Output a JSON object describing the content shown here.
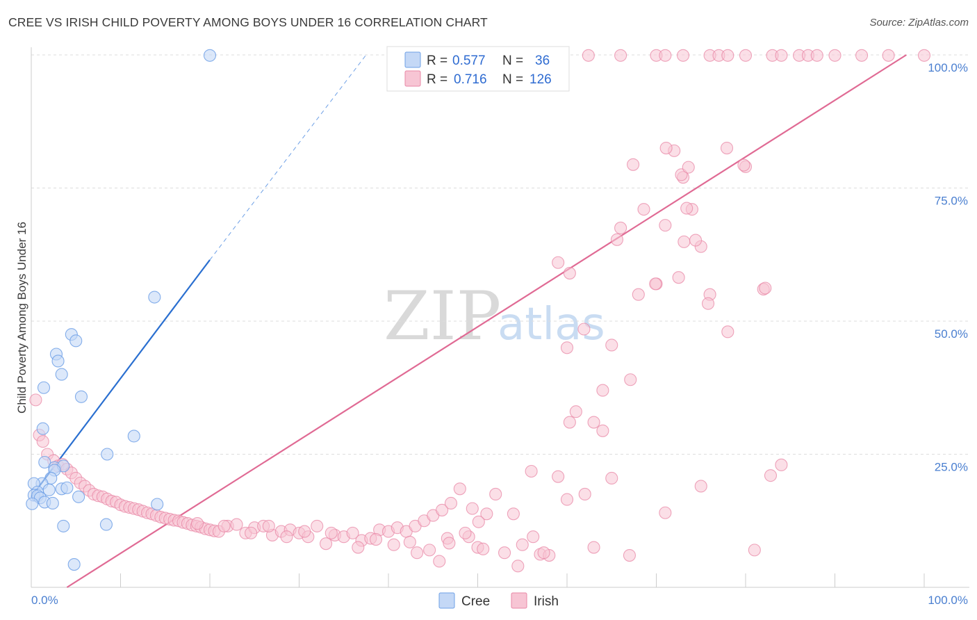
{
  "title": "CREE VS IRISH CHILD POVERTY AMONG BOYS UNDER 16 CORRELATION CHART",
  "source": "Source: ZipAtlas.com",
  "watermark": {
    "zip": "ZIP",
    "atlas": "atlas"
  },
  "colors": {
    "cree": "#6ea0e6",
    "cree_fill": "#c4d8f6",
    "cree_line": "#2a6fd0",
    "irish": "#e887a6",
    "irish_fill": "#f7c5d4",
    "irish_line": "#e06a94",
    "grid": "#dddddd",
    "axis_label": "#4a7fd0"
  },
  "chart_data": {
    "type": "scatter",
    "title": "CREE VS IRISH CHILD POVERTY AMONG BOYS UNDER 16 CORRELATION CHART",
    "xlabel": "",
    "ylabel": "Child Poverty Among Boys Under 16",
    "xlim": [
      0,
      100
    ],
    "ylim": [
      0,
      100
    ],
    "x_tick_labels": [
      "0.0%",
      "100.0%"
    ],
    "y_tick_labels": [
      "100.0%",
      "75.0%",
      "50.0%",
      "25.0%"
    ],
    "y_ticks": [
      100,
      75,
      50,
      25
    ],
    "legend": {
      "items": [
        {
          "label": "Cree",
          "r_label": "R =",
          "r": "0.577",
          "n_label": "N =",
          "n": "36"
        },
        {
          "label": "Irish",
          "r_label": "R =",
          "r": "0.716",
          "n_label": "N =",
          "n": "126"
        }
      ]
    },
    "series": [
      {
        "name": "Cree",
        "trend": {
          "x0": 0,
          "y0": 17,
          "x1": 20,
          "y1": 61.5,
          "dash_x1": 37.5,
          "dash_y1": 100
        },
        "points": [
          [
            20,
            99.9
          ],
          [
            13.8,
            54.5
          ],
          [
            4.5,
            47.5
          ],
          [
            5,
            46.3
          ],
          [
            2.8,
            43.8
          ],
          [
            3,
            42.5
          ],
          [
            3.4,
            40
          ],
          [
            1.4,
            37.5
          ],
          [
            5.6,
            35.8
          ],
          [
            1.3,
            29.8
          ],
          [
            11.5,
            28.4
          ],
          [
            8.5,
            25
          ],
          [
            1.5,
            23.5
          ],
          [
            2.6,
            22.5
          ],
          [
            3.6,
            22.8
          ],
          [
            2.6,
            22
          ],
          [
            2.2,
            20.5
          ],
          [
            1.2,
            19.5
          ],
          [
            0.3,
            19.5
          ],
          [
            3.4,
            18.5
          ],
          [
            4,
            18.7
          ],
          [
            2,
            18.3
          ],
          [
            0.7,
            17.9
          ],
          [
            0.3,
            17.3
          ],
          [
            0.7,
            17.2
          ],
          [
            1,
            16.8
          ],
          [
            1.5,
            16
          ],
          [
            2.4,
            15.8
          ],
          [
            5.3,
            17
          ],
          [
            14.1,
            15.6
          ],
          [
            0.1,
            15.7
          ],
          [
            3.6,
            11.5
          ],
          [
            8.4,
            11.8
          ],
          [
            4.8,
            4.3
          ]
        ]
      },
      {
        "name": "Irish",
        "trend": {
          "x0": 4,
          "y0": 0,
          "x1": 98,
          "y1": 100
        },
        "points": [
          [
            0.5,
            35.2
          ],
          [
            0.9,
            28.6
          ],
          [
            1.3,
            27.4
          ],
          [
            1.8,
            25
          ],
          [
            2.5,
            23.8
          ],
          [
            3,
            22.8
          ],
          [
            3.5,
            23.1
          ],
          [
            4,
            22.2
          ],
          [
            4.5,
            21.5
          ],
          [
            5,
            20.5
          ],
          [
            5.5,
            19.6
          ],
          [
            6,
            19
          ],
          [
            6.5,
            18.2
          ],
          [
            7,
            17.5
          ],
          [
            7.5,
            17.2
          ],
          [
            8,
            17
          ],
          [
            8.5,
            16.6
          ],
          [
            9,
            16.2
          ],
          [
            9.5,
            16
          ],
          [
            10,
            15.5
          ],
          [
            10.5,
            15.2
          ],
          [
            11,
            15
          ],
          [
            11.5,
            14.8
          ],
          [
            12,
            14.6
          ],
          [
            12.5,
            14.3
          ],
          [
            13,
            14
          ],
          [
            13.5,
            13.8
          ],
          [
            14,
            13.5
          ],
          [
            14.5,
            13.2
          ],
          [
            15,
            13
          ],
          [
            15.5,
            12.8
          ],
          [
            16,
            12.6
          ],
          [
            16.5,
            12.5
          ],
          [
            17,
            12.2
          ],
          [
            17.5,
            12
          ],
          [
            18,
            11.7
          ],
          [
            18.5,
            11.5
          ],
          [
            19,
            11.3
          ],
          [
            19.5,
            11
          ],
          [
            20,
            10.8
          ],
          [
            20.5,
            10.6
          ],
          [
            21,
            10.5
          ],
          [
            22,
            11.5
          ],
          [
            23,
            11.8
          ],
          [
            24,
            10.2
          ],
          [
            25,
            11.2
          ],
          [
            26,
            11.5
          ],
          [
            27,
            9.8
          ],
          [
            28,
            10.5
          ],
          [
            29,
            10.8
          ],
          [
            30,
            10.2
          ],
          [
            31,
            9.5
          ],
          [
            32,
            11.5
          ],
          [
            33,
            8.2
          ],
          [
            34,
            9.8
          ],
          [
            35,
            9.5
          ],
          [
            36,
            10.2
          ],
          [
            37,
            8.8
          ],
          [
            38,
            9.2
          ],
          [
            39,
            10.8
          ],
          [
            40,
            10.5
          ],
          [
            41,
            11.2
          ],
          [
            42,
            10.5
          ],
          [
            43,
            11.5
          ],
          [
            44,
            12.5
          ],
          [
            45,
            13.5
          ],
          [
            46,
            14.5
          ],
          [
            47,
            15.8
          ],
          [
            48,
            18.5
          ],
          [
            49,
            9.5
          ],
          [
            50,
            7.5
          ],
          [
            51,
            13.8
          ],
          [
            52,
            17.5
          ],
          [
            53,
            6.5
          ],
          [
            54,
            13.8
          ],
          [
            55,
            8
          ],
          [
            56,
            21.8
          ],
          [
            57,
            6.2
          ],
          [
            58,
            6
          ],
          [
            59,
            20.8
          ],
          [
            60,
            16.5
          ],
          [
            62,
            17.5
          ],
          [
            63,
            7.5
          ],
          [
            65,
            20.5
          ],
          [
            67,
            6
          ],
          [
            18.6,
            12
          ],
          [
            21.6,
            11.5
          ],
          [
            24.6,
            10.2
          ],
          [
            26.6,
            11.5
          ],
          [
            28.6,
            9.5
          ],
          [
            30.6,
            10.5
          ],
          [
            33.6,
            10.2
          ],
          [
            36.6,
            7.5
          ],
          [
            38.6,
            9
          ],
          [
            40.6,
            8
          ],
          [
            42.4,
            8.5
          ],
          [
            44.6,
            7
          ],
          [
            46.6,
            9.2
          ],
          [
            48.6,
            10.2
          ],
          [
            50.6,
            7.2
          ],
          [
            43.2,
            6.5
          ],
          [
            45.7,
            4.9
          ],
          [
            54.5,
            4
          ],
          [
            57.4,
            6.5
          ],
          [
            56.2,
            9.5
          ],
          [
            50.1,
            12.3
          ],
          [
            49.4,
            14.8
          ],
          [
            46.8,
            8.3
          ],
          [
            71,
            14
          ],
          [
            75,
            19
          ],
          [
            81,
            7
          ],
          [
            59,
            61
          ],
          [
            60,
            45
          ],
          [
            61,
            33
          ],
          [
            63,
            31
          ],
          [
            64,
            37
          ],
          [
            65,
            45.5
          ],
          [
            66,
            67.5
          ],
          [
            68,
            55
          ],
          [
            70,
            57
          ],
          [
            71,
            68
          ],
          [
            72,
            82
          ],
          [
            73,
            77
          ],
          [
            74,
            71
          ],
          [
            75,
            64
          ],
          [
            76,
            55
          ],
          [
            78,
            48
          ],
          [
            80,
            79
          ],
          [
            82,
            56
          ],
          [
            84,
            23
          ],
          [
            60.3,
            59
          ],
          [
            61.9,
            48.5
          ],
          [
            60.3,
            31
          ],
          [
            67.1,
            39
          ],
          [
            64,
            29.4
          ],
          [
            68.6,
            71
          ],
          [
            67.4,
            79.4
          ],
          [
            69.9,
            57
          ],
          [
            72.5,
            58.2
          ],
          [
            71.1,
            82.5
          ],
          [
            72.8,
            77.5
          ],
          [
            73.4,
            71.2
          ],
          [
            73.1,
            64.9
          ],
          [
            74.4,
            65.2
          ],
          [
            75.8,
            53.3
          ],
          [
            77.9,
            82.5
          ],
          [
            79.8,
            79.3
          ],
          [
            82.2,
            56.2
          ],
          [
            73.6,
            78.9
          ],
          [
            82.8,
            21
          ],
          [
            65.6,
            65.3
          ],
          [
            59,
            99.9
          ],
          [
            62.4,
            99.9
          ],
          [
            66,
            99.9
          ],
          [
            70,
            99.9
          ],
          [
            71,
            99.9
          ],
          [
            73,
            99.9
          ],
          [
            76,
            99.9
          ],
          [
            77,
            99.9
          ],
          [
            78,
            99.9
          ],
          [
            80,
            99.9
          ],
          [
            83,
            99.9
          ],
          [
            84,
            99.9
          ],
          [
            86,
            99.9
          ],
          [
            87,
            99.9
          ],
          [
            88,
            99.9
          ],
          [
            90,
            99.9
          ],
          [
            93,
            99.9
          ],
          [
            96,
            99.9
          ],
          [
            100,
            99.9
          ]
        ]
      }
    ]
  }
}
